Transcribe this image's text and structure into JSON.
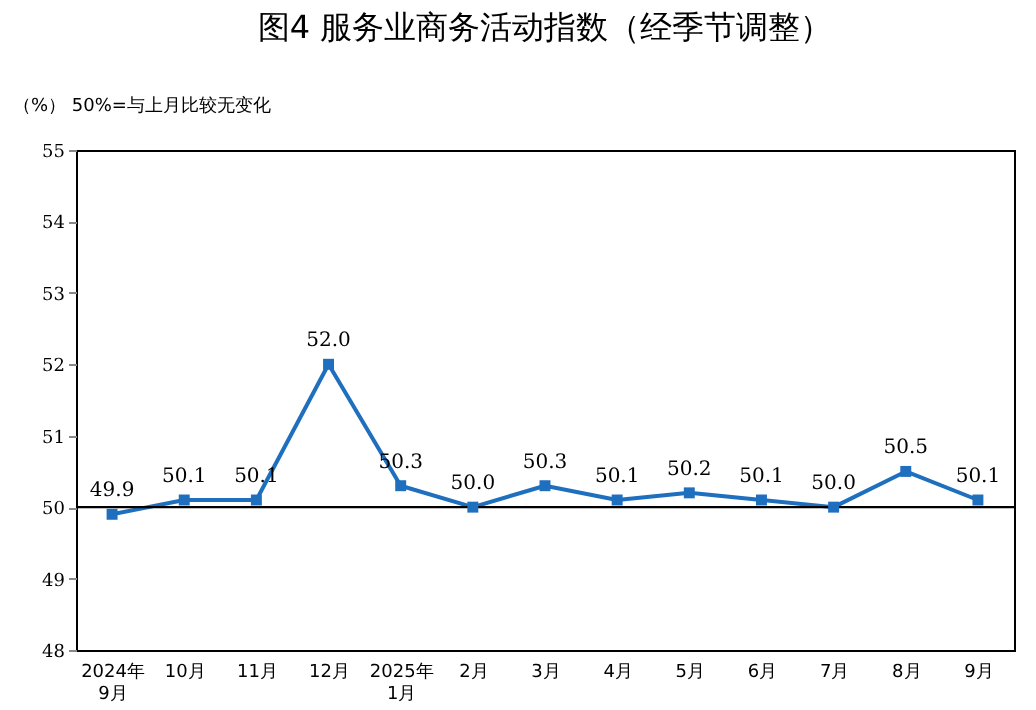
{
  "chart_data": {
    "type": "line",
    "title": "图4  服务业商务活动指数（经季节调整）",
    "ylabel": "（%）  50%=与上月比较无变化",
    "categories": [
      "2024年\n9月",
      "10月",
      "11月",
      "12月",
      "2025年\n1月",
      "2月",
      "3月",
      "4月",
      "5月",
      "6月",
      "7月",
      "8月",
      "9月"
    ],
    "series": [
      {
        "color": "#1f6fbf",
        "values": [
          49.9,
          50.1,
          50.1,
          52.0,
          50.3,
          50.0,
          50.3,
          50.1,
          50.2,
          50.1,
          50.0,
          50.5,
          50.1
        ]
      }
    ],
    "ylim": [
      48,
      55
    ],
    "yticks": [
      48,
      49,
      50,
      51,
      52,
      53,
      54,
      55
    ],
    "ref_lines": [
      {
        "axis": "y",
        "value": 50,
        "color": "#000000"
      }
    ],
    "value_labels": [
      "49.9",
      "50.1",
      "50.1",
      "52.0",
      "50.3",
      "50.0",
      "50.3",
      "50.1",
      "50.2",
      "50.1",
      "50.0",
      "50.5",
      "50.1"
    ],
    "marker": "square",
    "grid": false,
    "legend": false
  }
}
